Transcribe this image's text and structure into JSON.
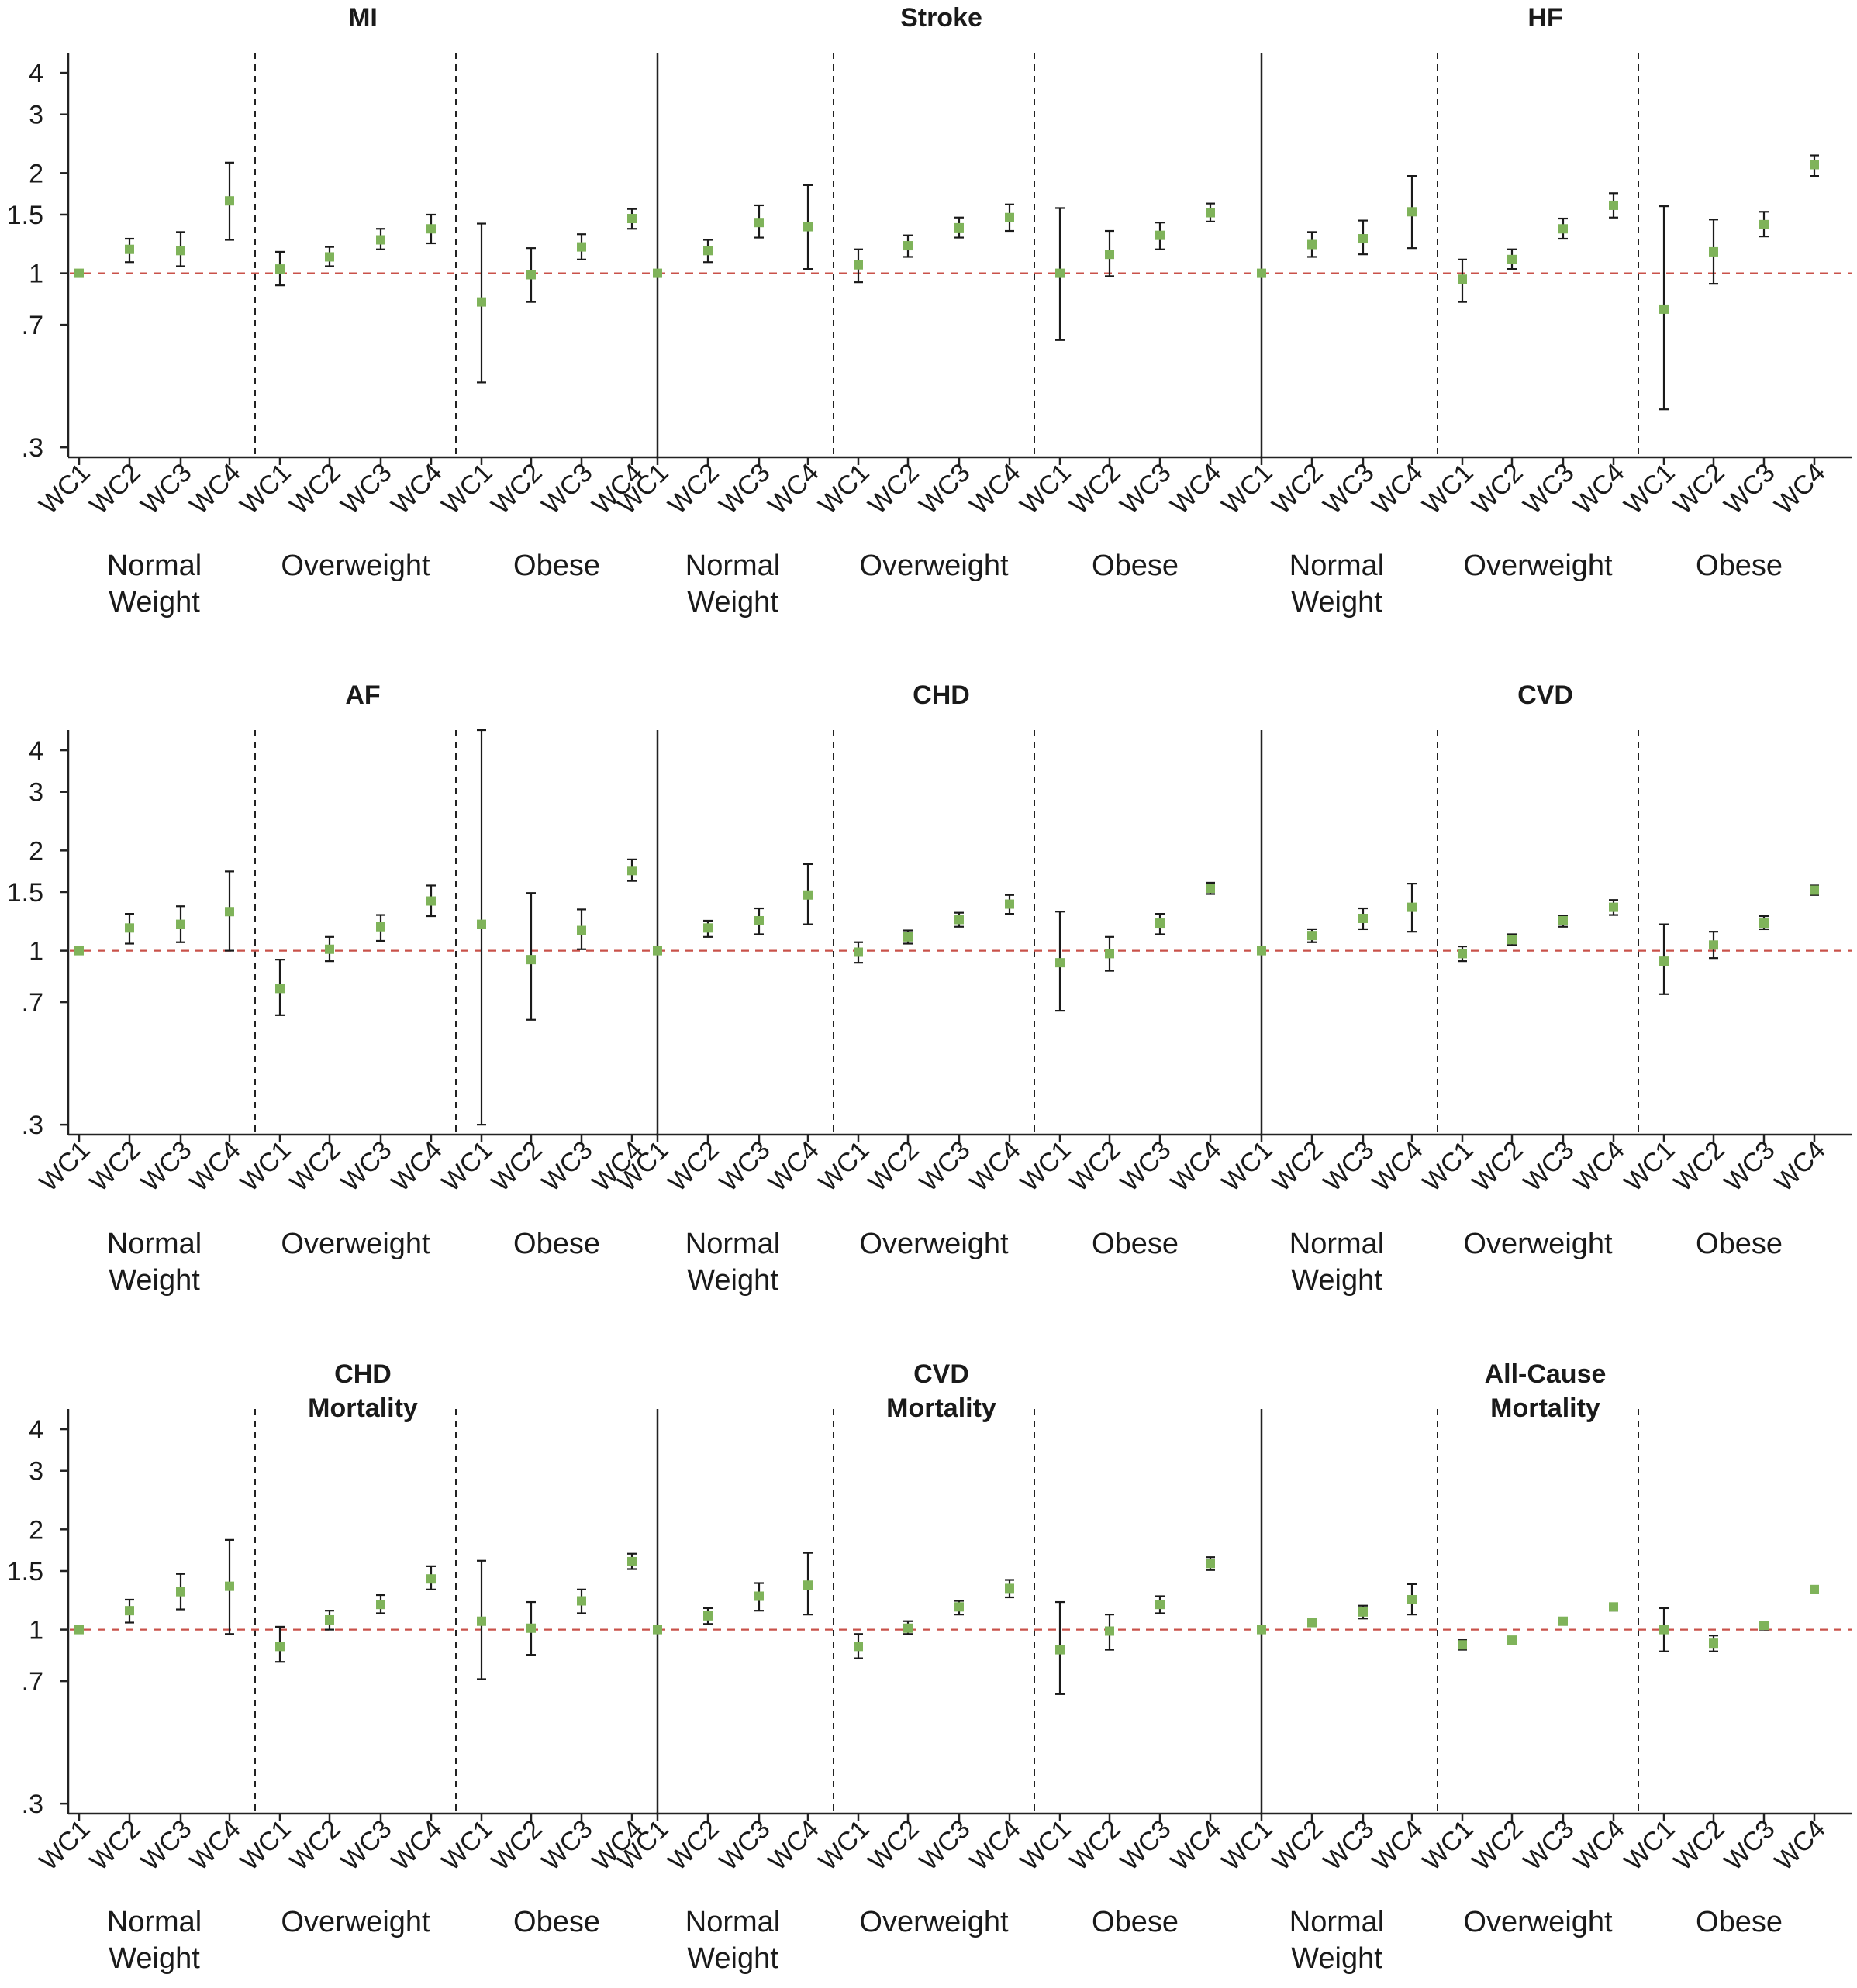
{
  "chart_data": {
    "type": "scatter",
    "description_kind": "small-multiples forest plot",
    "y_scale": "log",
    "ylim": [
      0.28,
      4.6
    ],
    "y_ticks": [
      0.3,
      0.7,
      1,
      1.5,
      2,
      3,
      4
    ],
    "y_tick_labels": [
      ".3",
      ".7",
      "1",
      "1.5",
      "2",
      "3",
      "4"
    ],
    "reference_line": {
      "y": 1,
      "color": "#c9524a",
      "style": "dashed"
    },
    "point_color": "#7fb35a",
    "groups": [
      [
        "Normal",
        "Weight"
      ],
      [
        "Overweight"
      ],
      [
        "Obese"
      ]
    ],
    "categories": [
      "WC1",
      "WC2",
      "WC3",
      "WC4"
    ],
    "panels": [
      {
        "title": [
          "MI"
        ],
        "groups": [
          [
            {
              "x": "WC1",
              "y": 1.0,
              "lo": 1.0,
              "hi": 1.0
            },
            {
              "x": "WC2",
              "y": 1.18,
              "lo": 1.08,
              "hi": 1.27
            },
            {
              "x": "WC3",
              "y": 1.17,
              "lo": 1.05,
              "hi": 1.33
            },
            {
              "x": "WC4",
              "y": 1.65,
              "lo": 1.26,
              "hi": 2.15
            }
          ],
          [
            {
              "x": "WC1",
              "y": 1.03,
              "lo": 0.92,
              "hi": 1.16
            },
            {
              "x": "WC2",
              "y": 1.12,
              "lo": 1.05,
              "hi": 1.2
            },
            {
              "x": "WC3",
              "y": 1.26,
              "lo": 1.18,
              "hi": 1.36
            },
            {
              "x": "WC4",
              "y": 1.36,
              "lo": 1.23,
              "hi": 1.5
            }
          ],
          [
            {
              "x": "WC1",
              "y": 0.82,
              "lo": 0.47,
              "hi": 1.41
            },
            {
              "x": "WC2",
              "y": 0.99,
              "lo": 0.82,
              "hi": 1.19
            },
            {
              "x": "WC3",
              "y": 1.2,
              "lo": 1.1,
              "hi": 1.31
            },
            {
              "x": "WC4",
              "y": 1.46,
              "lo": 1.36,
              "hi": 1.56
            }
          ]
        ]
      },
      {
        "title": [
          "Stroke"
        ],
        "groups": [
          [
            {
              "x": "WC1",
              "y": 1.0,
              "lo": 1.0,
              "hi": 1.0
            },
            {
              "x": "WC2",
              "y": 1.17,
              "lo": 1.08,
              "hi": 1.26
            },
            {
              "x": "WC3",
              "y": 1.42,
              "lo": 1.28,
              "hi": 1.6
            },
            {
              "x": "WC4",
              "y": 1.38,
              "lo": 1.03,
              "hi": 1.84
            }
          ],
          [
            {
              "x": "WC1",
              "y": 1.06,
              "lo": 0.94,
              "hi": 1.18
            },
            {
              "x": "WC2",
              "y": 1.21,
              "lo": 1.12,
              "hi": 1.3
            },
            {
              "x": "WC3",
              "y": 1.37,
              "lo": 1.28,
              "hi": 1.47
            },
            {
              "x": "WC4",
              "y": 1.47,
              "lo": 1.34,
              "hi": 1.61
            }
          ],
          [
            {
              "x": "WC1",
              "y": 1.0,
              "lo": 0.63,
              "hi": 1.57
            },
            {
              "x": "WC2",
              "y": 1.14,
              "lo": 0.98,
              "hi": 1.34
            },
            {
              "x": "WC3",
              "y": 1.3,
              "lo": 1.18,
              "hi": 1.42
            },
            {
              "x": "WC4",
              "y": 1.52,
              "lo": 1.43,
              "hi": 1.62
            }
          ]
        ]
      },
      {
        "title": [
          "HF"
        ],
        "groups": [
          [
            {
              "x": "WC1",
              "y": 1.0,
              "lo": 1.0,
              "hi": 1.0
            },
            {
              "x": "WC2",
              "y": 1.22,
              "lo": 1.12,
              "hi": 1.33
            },
            {
              "x": "WC3",
              "y": 1.27,
              "lo": 1.14,
              "hi": 1.44
            },
            {
              "x": "WC4",
              "y": 1.53,
              "lo": 1.19,
              "hi": 1.96
            }
          ],
          [
            {
              "x": "WC1",
              "y": 0.96,
              "lo": 0.82,
              "hi": 1.1
            },
            {
              "x": "WC2",
              "y": 1.1,
              "lo": 1.03,
              "hi": 1.18
            },
            {
              "x": "WC3",
              "y": 1.36,
              "lo": 1.27,
              "hi": 1.46
            },
            {
              "x": "WC4",
              "y": 1.6,
              "lo": 1.47,
              "hi": 1.74
            }
          ],
          [
            {
              "x": "WC1",
              "y": 0.78,
              "lo": 0.39,
              "hi": 1.59
            },
            {
              "x": "WC2",
              "y": 1.16,
              "lo": 0.93,
              "hi": 1.45
            },
            {
              "x": "WC3",
              "y": 1.4,
              "lo": 1.29,
              "hi": 1.53
            },
            {
              "x": "WC4",
              "y": 2.12,
              "lo": 1.96,
              "hi": 2.26
            }
          ]
        ]
      },
      {
        "title": [
          "AF"
        ],
        "groups": [
          [
            {
              "x": "WC1",
              "y": 1.0,
              "lo": 1.0,
              "hi": 1.0
            },
            {
              "x": "WC2",
              "y": 1.17,
              "lo": 1.05,
              "hi": 1.29
            },
            {
              "x": "WC3",
              "y": 1.2,
              "lo": 1.06,
              "hi": 1.36
            },
            {
              "x": "WC4",
              "y": 1.31,
              "lo": 1.0,
              "hi": 1.73
            }
          ],
          [
            {
              "x": "WC1",
              "y": 0.77,
              "lo": 0.64,
              "hi": 0.94
            },
            {
              "x": "WC2",
              "y": 1.01,
              "lo": 0.93,
              "hi": 1.1
            },
            {
              "x": "WC3",
              "y": 1.18,
              "lo": 1.07,
              "hi": 1.28
            },
            {
              "x": "WC4",
              "y": 1.41,
              "lo": 1.27,
              "hi": 1.57
            }
          ],
          [
            {
              "x": "WC1",
              "y": 1.2,
              "lo": 0.3,
              "hi": 4.7
            },
            {
              "x": "WC2",
              "y": 0.94,
              "lo": 0.62,
              "hi": 1.49
            },
            {
              "x": "WC3",
              "y": 1.15,
              "lo": 1.01,
              "hi": 1.33
            },
            {
              "x": "WC4",
              "y": 1.74,
              "lo": 1.62,
              "hi": 1.88
            }
          ]
        ]
      },
      {
        "title": [
          "CHD"
        ],
        "groups": [
          [
            {
              "x": "WC1",
              "y": 1.0,
              "lo": 1.0,
              "hi": 1.0
            },
            {
              "x": "WC2",
              "y": 1.17,
              "lo": 1.1,
              "hi": 1.23
            },
            {
              "x": "WC3",
              "y": 1.23,
              "lo": 1.12,
              "hi": 1.34
            },
            {
              "x": "WC4",
              "y": 1.47,
              "lo": 1.2,
              "hi": 1.82
            }
          ],
          [
            {
              "x": "WC1",
              "y": 0.99,
              "lo": 0.92,
              "hi": 1.06
            },
            {
              "x": "WC2",
              "y": 1.1,
              "lo": 1.05,
              "hi": 1.15
            },
            {
              "x": "WC3",
              "y": 1.24,
              "lo": 1.18,
              "hi": 1.3
            },
            {
              "x": "WC4",
              "y": 1.38,
              "lo": 1.29,
              "hi": 1.47
            }
          ],
          [
            {
              "x": "WC1",
              "y": 0.92,
              "lo": 0.66,
              "hi": 1.31
            },
            {
              "x": "WC2",
              "y": 0.98,
              "lo": 0.87,
              "hi": 1.1
            },
            {
              "x": "WC3",
              "y": 1.21,
              "lo": 1.12,
              "hi": 1.29
            },
            {
              "x": "WC4",
              "y": 1.54,
              "lo": 1.48,
              "hi": 1.6
            }
          ]
        ]
      },
      {
        "title": [
          "CVD"
        ],
        "groups": [
          [
            {
              "x": "WC1",
              "y": 1.0,
              "lo": 1.0,
              "hi": 1.0
            },
            {
              "x": "WC2",
              "y": 1.11,
              "lo": 1.06,
              "hi": 1.16
            },
            {
              "x": "WC3",
              "y": 1.25,
              "lo": 1.16,
              "hi": 1.34
            },
            {
              "x": "WC4",
              "y": 1.35,
              "lo": 1.14,
              "hi": 1.59
            }
          ],
          [
            {
              "x": "WC1",
              "y": 0.98,
              "lo": 0.93,
              "hi": 1.03
            },
            {
              "x": "WC2",
              "y": 1.08,
              "lo": 1.04,
              "hi": 1.12
            },
            {
              "x": "WC3",
              "y": 1.23,
              "lo": 1.18,
              "hi": 1.27
            },
            {
              "x": "WC4",
              "y": 1.35,
              "lo": 1.28,
              "hi": 1.42
            }
          ],
          [
            {
              "x": "WC1",
              "y": 0.93,
              "lo": 0.74,
              "hi": 1.2
            },
            {
              "x": "WC2",
              "y": 1.04,
              "lo": 0.95,
              "hi": 1.14
            },
            {
              "x": "WC3",
              "y": 1.21,
              "lo": 1.16,
              "hi": 1.27
            },
            {
              "x": "WC4",
              "y": 1.52,
              "lo": 1.47,
              "hi": 1.57
            }
          ]
        ]
      },
      {
        "title": [
          "CHD",
          "Mortality"
        ],
        "groups": [
          [
            {
              "x": "WC1",
              "y": 1.0,
              "lo": 1.0,
              "hi": 1.0
            },
            {
              "x": "WC2",
              "y": 1.14,
              "lo": 1.05,
              "hi": 1.23
            },
            {
              "x": "WC3",
              "y": 1.3,
              "lo": 1.15,
              "hi": 1.47
            },
            {
              "x": "WC4",
              "y": 1.35,
              "lo": 0.97,
              "hi": 1.86
            }
          ],
          [
            {
              "x": "WC1",
              "y": 0.89,
              "lo": 0.8,
              "hi": 1.02
            },
            {
              "x": "WC2",
              "y": 1.07,
              "lo": 1.0,
              "hi": 1.14
            },
            {
              "x": "WC3",
              "y": 1.19,
              "lo": 1.12,
              "hi": 1.27
            },
            {
              "x": "WC4",
              "y": 1.42,
              "lo": 1.32,
              "hi": 1.55
            }
          ],
          [
            {
              "x": "WC1",
              "y": 1.06,
              "lo": 0.71,
              "hi": 1.61
            },
            {
              "x": "WC2",
              "y": 1.01,
              "lo": 0.84,
              "hi": 1.21
            },
            {
              "x": "WC3",
              "y": 1.22,
              "lo": 1.12,
              "hi": 1.32
            },
            {
              "x": "WC4",
              "y": 1.6,
              "lo": 1.52,
              "hi": 1.69
            }
          ]
        ]
      },
      {
        "title": [
          "CVD",
          "Mortality"
        ],
        "groups": [
          [
            {
              "x": "WC1",
              "y": 1.0,
              "lo": 1.0,
              "hi": 1.0
            },
            {
              "x": "WC2",
              "y": 1.1,
              "lo": 1.04,
              "hi": 1.16
            },
            {
              "x": "WC3",
              "y": 1.26,
              "lo": 1.14,
              "hi": 1.38
            },
            {
              "x": "WC4",
              "y": 1.36,
              "lo": 1.11,
              "hi": 1.7
            }
          ],
          [
            {
              "x": "WC1",
              "y": 0.89,
              "lo": 0.82,
              "hi": 0.97
            },
            {
              "x": "WC2",
              "y": 1.01,
              "lo": 0.97,
              "hi": 1.06
            },
            {
              "x": "WC3",
              "y": 1.17,
              "lo": 1.11,
              "hi": 1.22
            },
            {
              "x": "WC4",
              "y": 1.33,
              "lo": 1.25,
              "hi": 1.41
            }
          ],
          [
            {
              "x": "WC1",
              "y": 0.87,
              "lo": 0.64,
              "hi": 1.21
            },
            {
              "x": "WC2",
              "y": 0.99,
              "lo": 0.87,
              "hi": 1.11
            },
            {
              "x": "WC3",
              "y": 1.19,
              "lo": 1.12,
              "hi": 1.26
            },
            {
              "x": "WC4",
              "y": 1.58,
              "lo": 1.51,
              "hi": 1.65
            }
          ]
        ]
      },
      {
        "title": [
          "All-Cause",
          "Mortality"
        ],
        "groups": [
          [
            {
              "x": "WC1",
              "y": 1.0,
              "lo": 1.0,
              "hi": 1.0
            },
            {
              "x": "WC2",
              "y": 1.05,
              "lo": 1.03,
              "hi": 1.08
            },
            {
              "x": "WC3",
              "y": 1.13,
              "lo": 1.08,
              "hi": 1.18
            },
            {
              "x": "WC4",
              "y": 1.23,
              "lo": 1.11,
              "hi": 1.37
            }
          ],
          [
            {
              "x": "WC1",
              "y": 0.9,
              "lo": 0.87,
              "hi": 0.93
            },
            {
              "x": "WC2",
              "y": 0.93,
              "lo": 0.91,
              "hi": 0.95
            },
            {
              "x": "WC3",
              "y": 1.06,
              "lo": 1.04,
              "hi": 1.08
            },
            {
              "x": "WC4",
              "y": 1.17,
              "lo": 1.14,
              "hi": 1.2
            }
          ],
          [
            {
              "x": "WC1",
              "y": 1.0,
              "lo": 0.86,
              "hi": 1.16
            },
            {
              "x": "WC2",
              "y": 0.91,
              "lo": 0.86,
              "hi": 0.96
            },
            {
              "x": "WC3",
              "y": 1.03,
              "lo": 1.0,
              "hi": 1.05
            },
            {
              "x": "WC4",
              "y": 1.32,
              "lo": 1.3,
              "hi": 1.34
            }
          ]
        ]
      }
    ]
  }
}
